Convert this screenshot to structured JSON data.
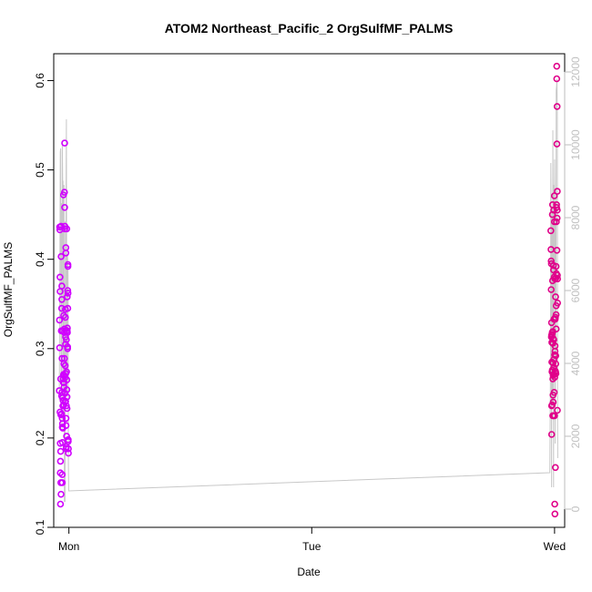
{
  "chart_data": {
    "type": "scatter",
    "title": "ATOM2 Northeast_Pacific_2 OrgSulfMF_PALMS",
    "xlabel": "Date",
    "ylabel": "OrgSulfMF_PALMS",
    "x_ticks": [
      "Mon",
      "Tue",
      "Wed"
    ],
    "y_ticks": [
      "0.1",
      "0.2",
      "0.3",
      "0.4",
      "0.5",
      "0.6"
    ],
    "y2_ticks": [
      "0",
      "2000",
      "4000",
      "6000",
      "8000",
      "10000",
      "12000"
    ],
    "xlim": [
      "2017-02-05T22:30",
      "2017-02-08T01:00"
    ],
    "ylim": [
      0.1,
      0.63
    ],
    "y2lim": [
      -500,
      12500
    ],
    "grid": false,
    "point_colors": [
      "#d000ff",
      "#e0008a"
    ],
    "secondary_line_color": "#c8c8c8",
    "series": [
      {
        "kind": "points",
        "points": [
          [
            "2017-02-05T23:03",
            0.253
          ],
          [
            "2017-02-05T23:04",
            0.332
          ],
          [
            "2017-02-05T23:05",
            0.436
          ],
          [
            "2017-02-05T23:05",
            0.301
          ],
          [
            "2017-02-05T23:06",
            0.433
          ],
          [
            "2017-02-05T23:07",
            0.38
          ],
          [
            "2017-02-05T23:07",
            0.229
          ],
          [
            "2017-02-05T23:08",
            0.364
          ],
          [
            "2017-02-05T23:09",
            0.161
          ],
          [
            "2017-02-05T23:09",
            0.194
          ],
          [
            "2017-02-05T23:10",
            0.174
          ],
          [
            "2017-02-05T23:10",
            0.126
          ],
          [
            "2017-02-05T23:11",
            0.185
          ],
          [
            "2017-02-05T23:11",
            0.266
          ],
          [
            "2017-02-05T23:12",
            0.226
          ],
          [
            "2017-02-05T23:12",
            0.15
          ],
          [
            "2017-02-05T23:13",
            0.137
          ],
          [
            "2017-02-05T23:14",
            0.403
          ],
          [
            "2017-02-05T23:14",
            0.437
          ],
          [
            "2017-02-05T23:15",
            0.32
          ],
          [
            "2017-02-05T23:16",
            0.227
          ],
          [
            "2017-02-05T23:17",
            0.345
          ],
          [
            "2017-02-05T23:17",
            0.247
          ],
          [
            "2017-02-05T23:18",
            0.355
          ],
          [
            "2017-02-05T23:18",
            0.37
          ],
          [
            "2017-02-05T23:19",
            0.289
          ],
          [
            "2017-02-05T23:19",
            0.251
          ],
          [
            "2017-02-05T23:20",
            0.222
          ],
          [
            "2017-02-05T23:20",
            0.159
          ],
          [
            "2017-02-05T23:21",
            0.15
          ],
          [
            "2017-02-05T23:21",
            0.212
          ],
          [
            "2017-02-05T23:22",
            0.216
          ],
          [
            "2017-02-05T23:22",
            0.195
          ],
          [
            "2017-02-05T23:23",
            0.32
          ],
          [
            "2017-02-05T23:23",
            0.245
          ],
          [
            "2017-02-05T23:24",
            0.211
          ],
          [
            "2017-02-05T23:24",
            0.236
          ],
          [
            "2017-02-05T23:25",
            0.242
          ],
          [
            "2017-02-05T23:26",
            0.266
          ],
          [
            "2017-02-05T23:27",
            0.262
          ],
          [
            "2017-02-05T23:28",
            0.472
          ],
          [
            "2017-02-05T23:28",
            0.271
          ],
          [
            "2017-02-05T23:29",
            0.337
          ],
          [
            "2017-02-05T23:30",
            0.283
          ],
          [
            "2017-02-05T23:30",
            0.237
          ],
          [
            "2017-02-05T23:31",
            0.262
          ],
          [
            "2017-02-05T23:31",
            0.257
          ],
          [
            "2017-02-05T23:32",
            0.27
          ],
          [
            "2017-02-05T23:33",
            0.289
          ],
          [
            "2017-02-05T23:33",
            0.318
          ],
          [
            "2017-02-05T23:34",
            0.322
          ],
          [
            "2017-02-05T23:34",
            0.475
          ],
          [
            "2017-02-05T23:35",
            0.53
          ],
          [
            "2017-02-05T23:35",
            0.458
          ],
          [
            "2017-02-05T23:36",
            0.437
          ],
          [
            "2017-02-05T23:36",
            0.434
          ],
          [
            "2017-02-05T23:37",
            0.24
          ],
          [
            "2017-02-05T23:37",
            0.25
          ],
          [
            "2017-02-05T23:38",
            0.268
          ],
          [
            "2017-02-05T23:38",
            0.281
          ],
          [
            "2017-02-05T23:39",
            0.335
          ],
          [
            "2017-02-05T23:39",
            0.344
          ],
          [
            "2017-02-05T23:40",
            0.313
          ],
          [
            "2017-02-05T23:40",
            0.305
          ],
          [
            "2017-02-05T23:41",
            0.272
          ],
          [
            "2017-02-05T23:41",
            0.241
          ],
          [
            "2017-02-05T23:42",
            0.413
          ],
          [
            "2017-02-05T23:42",
            0.407
          ],
          [
            "2017-02-05T23:43",
            0.222
          ],
          [
            "2017-02-05T23:43",
            0.214
          ],
          [
            "2017-02-05T23:44",
            0.19
          ],
          [
            "2017-02-05T23:44",
            0.188
          ],
          [
            "2017-02-05T23:45",
            0.31
          ],
          [
            "2017-02-05T23:45",
            0.236
          ],
          [
            "2017-02-05T23:46",
            0.202
          ],
          [
            "2017-02-05T23:46",
            0.274
          ],
          [
            "2017-02-05T23:47",
            0.32
          ],
          [
            "2017-02-05T23:47",
            0.434
          ],
          [
            "2017-02-05T23:48",
            0.265
          ],
          [
            "2017-02-05T23:48",
            0.254
          ],
          [
            "2017-02-05T23:49",
            0.246
          ],
          [
            "2017-02-05T23:49",
            0.233
          ],
          [
            "2017-02-05T23:50",
            0.358
          ],
          [
            "2017-02-05T23:50",
            0.32
          ],
          [
            "2017-02-05T23:51",
            0.323
          ],
          [
            "2017-02-05T23:51",
            0.318
          ],
          [
            "2017-02-05T23:52",
            0.302
          ],
          [
            "2017-02-05T23:52",
            0.3
          ],
          [
            "2017-02-05T23:53",
            0.345
          ],
          [
            "2017-02-05T23:53",
            0.365
          ],
          [
            "2017-02-05T23:54",
            0.392
          ],
          [
            "2017-02-05T23:54",
            0.394
          ],
          [
            "2017-02-05T23:55",
            0.362
          ],
          [
            "2017-02-05T23:56",
            0.198
          ],
          [
            "2017-02-05T23:56",
            0.196
          ],
          [
            "2017-02-05T23:57",
            0.188
          ],
          [
            "2017-02-05T23:57",
            0.183
          ],
          [
            "2017-02-07T23:38",
            0.432
          ],
          [
            "2017-02-07T23:39",
            0.411
          ],
          [
            "2017-02-07T23:40",
            0.398
          ],
          [
            "2017-02-07T23:40",
            0.366
          ],
          [
            "2017-02-07T23:41",
            0.395
          ],
          [
            "2017-02-07T23:41",
            0.313
          ],
          [
            "2017-02-07T23:42",
            0.329
          ],
          [
            "2017-02-07T23:42",
            0.315
          ],
          [
            "2017-02-07T23:43",
            0.236
          ],
          [
            "2017-02-07T23:43",
            0.204
          ],
          [
            "2017-02-07T23:44",
            0.285
          ],
          [
            "2017-02-07T23:44",
            0.307
          ],
          [
            "2017-02-07T23:45",
            0.274
          ],
          [
            "2017-02-07T23:45",
            0.316
          ],
          [
            "2017-02-07T23:46",
            0.318
          ],
          [
            "2017-02-07T23:46",
            0.237
          ],
          [
            "2017-02-07T23:47",
            0.45
          ],
          [
            "2017-02-07T23:47",
            0.276
          ],
          [
            "2017-02-07T23:48",
            0.461
          ],
          [
            "2017-02-07T23:48",
            0.376
          ],
          [
            "2017-02-07T23:49",
            0.225
          ],
          [
            "2017-02-07T23:49",
            0.319
          ],
          [
            "2017-02-07T23:50",
            0.306
          ],
          [
            "2017-02-07T23:50",
            0.266
          ],
          [
            "2017-02-07T23:51",
            0.284
          ],
          [
            "2017-02-07T23:51",
            0.248
          ],
          [
            "2017-02-07T23:52",
            0.27
          ],
          [
            "2017-02-07T23:52",
            0.24
          ],
          [
            "2017-02-07T23:53",
            0.393
          ],
          [
            "2017-02-07T23:53",
            0.311
          ],
          [
            "2017-02-07T23:54",
            0.388
          ],
          [
            "2017-02-07T23:54",
            0.225
          ],
          [
            "2017-02-07T23:55",
            0.455
          ],
          [
            "2017-02-07T23:55",
            0.31
          ],
          [
            "2017-02-07T23:56",
            0.288
          ],
          [
            "2017-02-07T23:56",
            0.279
          ],
          [
            "2017-02-07T23:57",
            0.271
          ],
          [
            "2017-02-07T23:57",
            0.333
          ],
          [
            "2017-02-07T23:58",
            0.38
          ],
          [
            "2017-02-07T23:58",
            0.251
          ],
          [
            "2017-02-07T23:59",
            0.471
          ],
          [
            "2017-02-07T23:59",
            0.442
          ],
          [
            "2017-02-08T00:00",
            0.225
          ],
          [
            "2017-02-08T00:00",
            0.293
          ],
          [
            "2017-02-08T00:01",
            0.268
          ],
          [
            "2017-02-08T00:01",
            0.126
          ],
          [
            "2017-02-08T00:02",
            0.115
          ],
          [
            "2017-02-08T00:02",
            0.378
          ],
          [
            "2017-02-08T00:03",
            0.297
          ],
          [
            "2017-02-08T00:03",
            0.303
          ],
          [
            "2017-02-08T00:04",
            0.275
          ],
          [
            "2017-02-08T00:04",
            0.333
          ],
          [
            "2017-02-08T00:05",
            0.167
          ],
          [
            "2017-02-08T00:05",
            0.335
          ],
          [
            "2017-02-08T00:06",
            0.274
          ],
          [
            "2017-02-08T00:06",
            0.358
          ],
          [
            "2017-02-08T00:07",
            0.292
          ],
          [
            "2017-02-08T00:07",
            0.283
          ],
          [
            "2017-02-08T00:08",
            0.272
          ],
          [
            "2017-02-08T00:08",
            0.379
          ],
          [
            "2017-02-08T00:09",
            0.338
          ],
          [
            "2017-02-08T00:09",
            0.392
          ],
          [
            "2017-02-08T00:10",
            0.348
          ],
          [
            "2017-02-08T00:10",
            0.322
          ],
          [
            "2017-02-08T00:11",
            0.384
          ],
          [
            "2017-02-08T00:11",
            0.442
          ],
          [
            "2017-02-08T00:12",
            0.461
          ],
          [
            "2017-02-08T00:12",
            0.458
          ],
          [
            "2017-02-08T00:13",
            0.616
          ],
          [
            "2017-02-08T00:13",
            0.602
          ],
          [
            "2017-02-08T00:14",
            0.529
          ],
          [
            "2017-02-08T00:14",
            0.41
          ],
          [
            "2017-02-08T00:15",
            0.571
          ],
          [
            "2017-02-08T00:15",
            0.446
          ],
          [
            "2017-02-08T00:16",
            0.476
          ],
          [
            "2017-02-08T00:16",
            0.455
          ],
          [
            "2017-02-08T00:17",
            0.382
          ],
          [
            "2017-02-08T00:17",
            0.231
          ],
          [
            "2017-02-08T00:18",
            0.351
          ],
          [
            "2017-02-08T00:18",
            0.378
          ]
        ]
      },
      {
        "kind": "secondary_line",
        "points": [
          [
            "2017-02-05T23:03",
            3000
          ],
          [
            "2017-02-05T23:05",
            5200
          ],
          [
            "2017-02-05T23:07",
            7800
          ],
          [
            "2017-02-05T23:09",
            9800
          ],
          [
            "2017-02-05T23:11",
            9900
          ],
          [
            "2017-02-05T23:13",
            3500
          ],
          [
            "2017-02-05T23:15",
            8400
          ],
          [
            "2017-02-05T23:17",
            5800
          ],
          [
            "2017-02-05T23:19",
            2200
          ],
          [
            "2017-02-05T23:21",
            10100
          ],
          [
            "2017-02-05T23:23",
            9000
          ],
          [
            "2017-02-05T23:25",
            9000
          ],
          [
            "2017-02-05T23:27",
            2500
          ],
          [
            "2017-02-05T23:29",
            8800
          ],
          [
            "2017-02-05T23:31",
            8900
          ],
          [
            "2017-02-05T23:33",
            200
          ],
          [
            "2017-02-05T23:35",
            4500
          ],
          [
            "2017-02-05T23:37",
            200
          ],
          [
            "2017-02-05T23:39",
            7900
          ],
          [
            "2017-02-05T23:41",
            3000
          ],
          [
            "2017-02-05T23:43",
            8600
          ],
          [
            "2017-02-05T23:45",
            10700
          ],
          [
            "2017-02-05T23:47",
            4200
          ],
          [
            "2017-02-05T23:49",
            3100
          ],
          [
            "2017-02-05T23:51",
            7000
          ],
          [
            "2017-02-05T23:53",
            6800
          ],
          [
            "2017-02-05T23:55",
            6400
          ],
          [
            "2017-02-05T23:57",
            1200
          ],
          [
            "2017-02-05T23:59",
            500
          ],
          [
            "2017-02-07T23:32",
            1000
          ],
          [
            "2017-02-07T23:36",
            3800
          ],
          [
            "2017-02-07T23:38",
            9500
          ],
          [
            "2017-02-07T23:40",
            7800
          ],
          [
            "2017-02-07T23:42",
            600
          ],
          [
            "2017-02-07T23:44",
            7300
          ],
          [
            "2017-02-07T23:46",
            8300
          ],
          [
            "2017-02-07T23:48",
            2900
          ],
          [
            "2017-02-07T23:50",
            10400
          ],
          [
            "2017-02-07T23:52",
            7500
          ],
          [
            "2017-02-07T23:54",
            600
          ],
          [
            "2017-02-07T23:56",
            8900
          ],
          [
            "2017-02-07T23:58",
            5900
          ],
          [
            "2017-02-08T00:00",
            9600
          ],
          [
            "2017-02-08T00:02",
            7300
          ],
          [
            "2017-02-08T00:04",
            1800
          ],
          [
            "2017-02-08T00:06",
            8300
          ],
          [
            "2017-02-08T00:08",
            4000
          ],
          [
            "2017-02-08T00:10",
            11500
          ],
          [
            "2017-02-08T00:12",
            11600
          ],
          [
            "2017-02-08T00:14",
            11800
          ],
          [
            "2017-02-08T00:16",
            10900
          ],
          [
            "2017-02-08T00:18",
            2300
          ],
          [
            "2017-02-08T00:19",
            1400
          ]
        ]
      }
    ]
  }
}
